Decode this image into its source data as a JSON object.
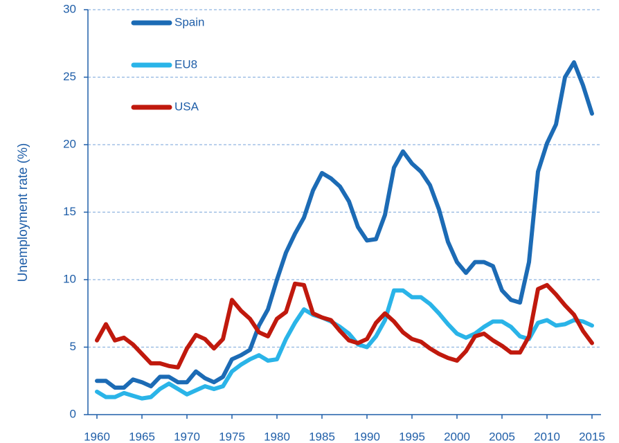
{
  "chart_data": {
    "type": "line",
    "y_label": "Unemployment rate (%)",
    "x": [
      1960,
      1961,
      1962,
      1963,
      1964,
      1965,
      1966,
      1967,
      1968,
      1969,
      1970,
      1971,
      1972,
      1973,
      1974,
      1975,
      1976,
      1977,
      1978,
      1979,
      1980,
      1981,
      1982,
      1983,
      1984,
      1985,
      1986,
      1987,
      1988,
      1989,
      1990,
      1991,
      1992,
      1993,
      1994,
      1995,
      1996,
      1997,
      1998,
      1999,
      2000,
      2001,
      2002,
      2003,
      2004,
      2005,
      2006,
      2007,
      2008,
      2009,
      2010,
      2011,
      2012,
      2013,
      2014,
      2015
    ],
    "series": [
      {
        "name": "Spain",
        "color": "#1c6bb5",
        "values": [
          2.5,
          2.5,
          2.0,
          2.0,
          2.6,
          2.4,
          2.1,
          2.8,
          2.8,
          2.4,
          2.4,
          3.2,
          2.7,
          2.4,
          2.8,
          4.1,
          4.4,
          4.8,
          6.6,
          7.8,
          10.0,
          12.0,
          13.4,
          14.6,
          16.6,
          17.9,
          17.5,
          16.9,
          15.8,
          13.9,
          12.9,
          13.0,
          14.8,
          18.3,
          19.5,
          18.6,
          18.0,
          17.0,
          15.2,
          12.8,
          11.3,
          10.5,
          11.3,
          11.3,
          11.0,
          9.2,
          8.5,
          8.3,
          11.3,
          18.0,
          20.1,
          21.5,
          25.0,
          26.1,
          24.4,
          22.3
        ]
      },
      {
        "name": "EU8",
        "color": "#2ab4e8",
        "values": [
          1.7,
          1.3,
          1.3,
          1.6,
          1.4,
          1.2,
          1.3,
          1.9,
          2.3,
          1.9,
          1.5,
          1.8,
          2.1,
          1.9,
          2.1,
          3.2,
          3.7,
          4.1,
          4.4,
          4.0,
          4.1,
          5.6,
          6.8,
          7.8,
          7.4,
          7.2,
          6.9,
          6.5,
          6.0,
          5.2,
          5.0,
          5.8,
          7.0,
          9.2,
          9.2,
          8.7,
          8.7,
          8.2,
          7.5,
          6.7,
          6.0,
          5.7,
          6.0,
          6.5,
          6.9,
          6.9,
          6.5,
          5.8,
          5.6,
          6.8,
          7.0,
          6.6,
          6.7,
          7.0,
          6.9,
          6.6
        ]
      },
      {
        "name": "USA",
        "color": "#c0190d",
        "values": [
          5.5,
          6.7,
          5.5,
          5.7,
          5.2,
          4.5,
          3.8,
          3.8,
          3.6,
          3.5,
          4.9,
          5.9,
          5.6,
          4.9,
          5.6,
          8.5,
          7.7,
          7.1,
          6.1,
          5.8,
          7.1,
          7.6,
          9.7,
          9.6,
          7.5,
          7.2,
          7.0,
          6.2,
          5.5,
          5.3,
          5.6,
          6.8,
          7.5,
          6.9,
          6.1,
          5.6,
          5.4,
          4.9,
          4.5,
          4.2,
          4.0,
          4.7,
          5.8,
          6.0,
          5.5,
          5.1,
          4.6,
          4.6,
          5.8,
          9.3,
          9.6,
          8.9,
          8.1,
          7.4,
          6.2,
          5.3
        ]
      }
    ],
    "xlim": [
      1959,
      2016
    ],
    "xticks": [
      1960,
      1965,
      1970,
      1975,
      1980,
      1985,
      1990,
      1995,
      2000,
      2005,
      2010,
      2015
    ],
    "ylim": [
      0,
      30
    ],
    "yticks": [
      0,
      5,
      10,
      15,
      20,
      25,
      30
    ],
    "grid": true,
    "legend": "upper left"
  }
}
